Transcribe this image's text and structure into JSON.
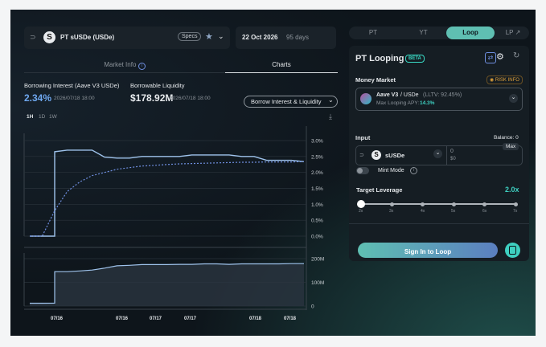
{
  "market": {
    "name": "PT sUSDe (USDe)",
    "specs_label": "Specs",
    "expiry_date": "22 Oct 2026",
    "days_left": "95 days"
  },
  "left_tabs": {
    "market_info": "Market Info",
    "charts": "Charts"
  },
  "stats": {
    "borrow_label": "Borrowing Interest (Aave V3 USDe)",
    "borrow_value": "2.34%",
    "borrow_time": "2026/07/18 18:00",
    "liquidity_label": "Borrowable Liquidity",
    "liquidity_value": "$178.92M",
    "liquidity_time": "2026/07/18 18:00",
    "dropdown_label": "Borrow Interest & Liquidity"
  },
  "time_ranges": [
    "1H",
    "1D",
    "1W"
  ],
  "segments": {
    "pt": "PT",
    "yt": "YT",
    "loop": "Loop",
    "lp": "LP ↗"
  },
  "panel": {
    "title": "PT Looping",
    "beta": "BETA",
    "money_market_label": "Money Market",
    "risk_info": "RISK INFO",
    "mm_protocol": "Aave V3",
    "mm_asset": "/ USDe",
    "mm_lltv": "(LLTV: 92.45%)",
    "mm_apy_label": "Max Looping APY:",
    "mm_apy_value": "14.3%",
    "input_label": "Input",
    "balance": "Balance: 0",
    "token": "sUSDe",
    "amount": "0",
    "amount_usd": "$0",
    "max_label": "Max",
    "mint_mode": "Mint Mode",
    "target_leverage_label": "Target Leverage",
    "target_leverage_value": "2.0x",
    "leverage_ticks": [
      "2x",
      "3x",
      "4x",
      "5x",
      "6x",
      "7x"
    ],
    "signin_button": "Sign In to Loop"
  },
  "colors": {
    "accent": "#3ecfc0",
    "line_primary": "#9fc3ec",
    "line_dashed": "#6f8fe0",
    "beta": "#39d9c4",
    "risk": "#e0a13a"
  },
  "chart_data": [
    {
      "type": "line",
      "x_tick_labels": [
        "07/16",
        "07/16",
        "07/17",
        "07/17",
        "07/18",
        "07/18"
      ],
      "ytick_labels": [
        "3.0%",
        "2.5%",
        "2.0%",
        "1.5%",
        "1.0%",
        "0.5%",
        "0.0%"
      ],
      "ylim": [
        0,
        3.0
      ],
      "series": [
        {
          "style": "solid",
          "values": [
            0,
            0,
            2.65,
            2.7,
            2.7,
            2.7,
            2.48,
            2.45,
            2.45,
            2.5,
            2.5,
            2.5,
            2.5,
            2.55,
            2.55,
            2.55,
            2.55,
            2.5,
            2.5,
            2.38,
            2.38,
            2.38,
            2.34
          ]
        },
        {
          "style": "dashed",
          "values": [
            0,
            0,
            0.8,
            1.4,
            1.7,
            1.9,
            2.0,
            2.1,
            2.15,
            2.2,
            2.22,
            2.25,
            2.27,
            2.28,
            2.29,
            2.3,
            2.31,
            2.32,
            2.32,
            2.33,
            2.33,
            2.33,
            2.34
          ]
        }
      ]
    },
    {
      "type": "area",
      "ytick_labels": [
        "200M",
        "100M",
        "0"
      ],
      "ylim": [
        0,
        200
      ],
      "values": [
        12,
        12,
        145,
        145,
        148,
        152,
        160,
        170,
        172,
        175,
        175,
        175,
        176,
        176,
        178,
        178,
        176,
        178,
        178,
        178,
        178,
        179,
        179
      ]
    }
  ]
}
